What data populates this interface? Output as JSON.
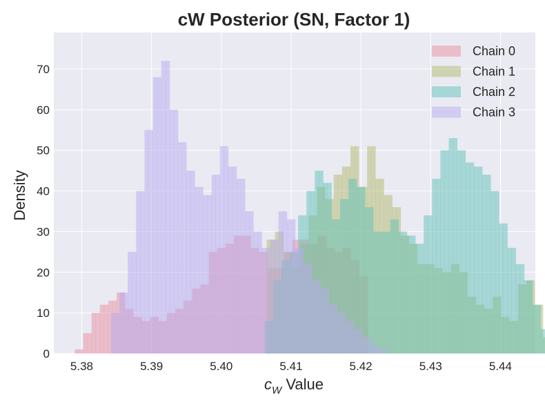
{
  "chart_data": {
    "type": "histogram",
    "title": "cW Posterior (SN, Factor 1)",
    "xlabel_symbol": "c",
    "xlabel_subscript": "W",
    "xlabel_text": " Value",
    "ylabel": "Density",
    "xlim": [
      5.376,
      5.445
    ],
    "ylim": [
      0,
      79
    ],
    "xticks": [
      5.38,
      5.39,
      5.4,
      5.41,
      5.42,
      5.43,
      5.44
    ],
    "xtick_labels": [
      "5.38",
      "5.39",
      "5.40",
      "5.41",
      "5.42",
      "5.43",
      "5.44"
    ],
    "yticks": [
      0,
      10,
      20,
      30,
      40,
      50,
      60,
      70
    ],
    "ytick_labels": [
      "0",
      "10",
      "20",
      "30",
      "40",
      "50",
      "60",
      "70"
    ],
    "grid": true,
    "legend_position": "top-right",
    "background": "#eaeaf2",
    "series": [
      {
        "name": "Chain 0",
        "color": "#e8909f",
        "x_start": 5.379,
        "bin_width": 0.0006,
        "values": [
          1,
          1,
          5,
          5,
          10,
          10,
          12,
          12,
          13,
          13,
          15,
          15,
          11,
          11,
          9,
          9,
          8,
          8,
          9,
          9,
          8,
          8,
          10,
          10,
          11,
          11,
          13,
          13,
          16,
          16,
          17,
          17,
          25,
          25,
          26,
          26,
          27,
          27,
          29,
          29,
          29,
          29,
          26,
          26,
          25,
          25,
          21,
          21,
          21,
          21,
          25,
          25,
          28,
          28,
          28,
          28,
          27,
          27,
          29,
          29,
          26,
          26,
          25,
          25,
          26,
          26,
          23,
          23,
          19,
          19
        ]
      },
      {
        "name": "Chain 1",
        "color": "#b4b96e",
        "x_start": 5.4065,
        "bin_width": 0.0006,
        "values": [
          28,
          28,
          30,
          30,
          25,
          25,
          21,
          21,
          27,
          27,
          34,
          34,
          41,
          41,
          38,
          38,
          44,
          44,
          46,
          46,
          51,
          51,
          41,
          41,
          51,
          51,
          43,
          43,
          39,
          39,
          36,
          36,
          29,
          29,
          27,
          27,
          22,
          22,
          22,
          22,
          21,
          21,
          20,
          20,
          22,
          22,
          20,
          20,
          14,
          14,
          12,
          12,
          11,
          11,
          14,
          14,
          9,
          9,
          8,
          8,
          17,
          17,
          18,
          18,
          12,
          12,
          4,
          4,
          2,
          2
        ]
      },
      {
        "name": "Chain 2",
        "color": "#62c2b8",
        "x_start": 5.4062,
        "bin_width": 0.0006,
        "values": [
          8,
          8,
          18,
          18,
          23,
          23,
          25,
          25,
          34,
          34,
          40,
          40,
          45,
          45,
          42,
          42,
          33,
          33,
          38,
          38,
          43,
          43,
          41,
          41,
          36,
          36,
          30,
          30,
          30,
          30,
          33,
          33,
          30,
          30,
          29,
          29,
          27,
          27,
          34,
          34,
          43,
          43,
          50,
          50,
          53,
          53,
          50,
          50,
          47,
          47,
          46,
          46,
          44,
          44,
          40,
          40,
          32,
          32,
          26,
          26,
          22,
          22,
          18,
          18,
          12,
          12,
          6,
          6,
          5,
          5
        ]
      },
      {
        "name": "Chain 3",
        "color": "#b7a9f0",
        "x_start": 5.3842,
        "bin_width": 0.0006,
        "values": [
          10,
          10,
          15,
          15,
          25,
          25,
          40,
          40,
          55,
          55,
          68,
          68,
          72,
          72,
          60,
          60,
          52,
          52,
          45,
          45,
          41,
          41,
          39,
          39,
          44,
          44,
          51,
          51,
          46,
          46,
          43,
          43,
          35,
          35,
          30,
          30,
          26,
          26,
          28,
          28,
          35,
          35,
          33,
          33,
          26,
          26,
          22,
          22,
          18,
          18,
          16,
          16,
          12,
          12,
          10,
          10,
          8,
          8,
          6,
          6,
          4,
          4,
          2,
          2,
          1,
          1
        ]
      }
    ]
  }
}
